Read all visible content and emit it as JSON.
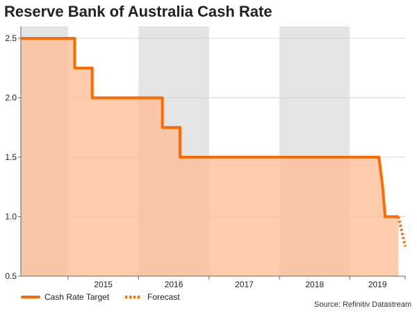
{
  "chart_data": {
    "type": "area",
    "title": "Reserve Bank of Australia Cash Rate",
    "xlabel": "",
    "ylabel": "",
    "ylim": [
      0.5,
      2.6
    ],
    "xlim": [
      "2014-05-01",
      "2019-10-15"
    ],
    "yticks": [
      0.5,
      1.0,
      1.5,
      2.0,
      2.5
    ],
    "ytick_labels": [
      "0.5",
      "1.0",
      "1.5",
      "2.0",
      "2.5"
    ],
    "xtick_labels": [
      "2015",
      "2016",
      "2017",
      "2018",
      "2019"
    ],
    "grid": "horizontal",
    "legend_position": "bottom-left",
    "shaded_years": [
      "2014",
      "2016",
      "2018"
    ],
    "series": [
      {
        "name": "Cash Rate Target",
        "style": "solid",
        "color": "#ff6a00",
        "fill": "#ffbe96",
        "points": [
          {
            "x": "2014-05-01",
            "y": 2.5
          },
          {
            "x": "2015-02-04",
            "y": 2.5
          },
          {
            "x": "2015-02-04",
            "y": 2.25
          },
          {
            "x": "2015-05-06",
            "y": 2.25
          },
          {
            "x": "2015-05-06",
            "y": 2.0
          },
          {
            "x": "2016-05-04",
            "y": 2.0
          },
          {
            "x": "2016-05-04",
            "y": 1.75
          },
          {
            "x": "2016-08-03",
            "y": 1.75
          },
          {
            "x": "2016-08-03",
            "y": 1.5
          },
          {
            "x": "2019-06-01",
            "y": 1.5
          },
          {
            "x": "2019-06-20",
            "y": 1.25
          },
          {
            "x": "2019-07-03",
            "y": 1.0
          },
          {
            "x": "2019-09-10",
            "y": 1.0
          }
        ]
      },
      {
        "name": "Forecast",
        "style": "dotted",
        "color": "#ff6a00",
        "points": [
          {
            "x": "2019-09-10",
            "y": 1.0
          },
          {
            "x": "2019-10-15",
            "y": 0.75
          }
        ]
      }
    ]
  },
  "legend": {
    "items": [
      {
        "label": "Cash Rate Target",
        "color": "#ff6a00"
      },
      {
        "label": "Forecast",
        "color": "#ff6a00"
      }
    ]
  },
  "source": "Source: Refinitiv Datastream"
}
